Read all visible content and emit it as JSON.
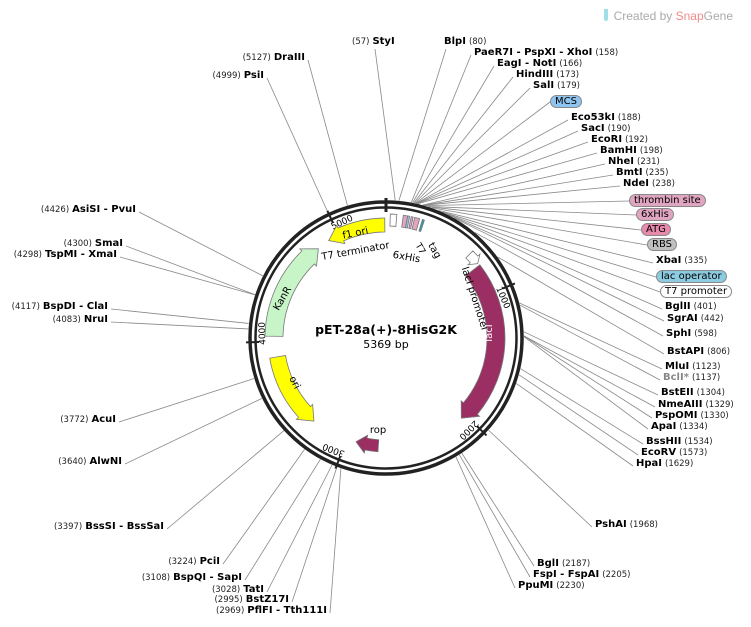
{
  "brand": {
    "prefix": "Created by",
    "name_a": "Snap",
    "name_b": "Gene",
    "icon": "tube-icon"
  },
  "plasmid": {
    "name": "pET-28a(+)-8HisG2K",
    "size_label": "5369 bp",
    "length": 5369
  },
  "ticks": [
    "1000",
    "2000",
    "3000",
    "4000",
    "5000"
  ],
  "features": [
    {
      "name": "lacI",
      "start": 776,
      "end": 2040,
      "dir": 1,
      "color": "#9b2f63",
      "text_color": "#fff"
    },
    {
      "name": "lacI promoter",
      "start": 670,
      "end": 760,
      "dir": 1,
      "color": "#ffffff",
      "text_color": "#000"
    },
    {
      "name": "rop",
      "start": 2745,
      "end": 2925,
      "dir": 1,
      "color": "#9b2f63",
      "text_color": "#000"
    },
    {
      "name": "ori",
      "start": 3295,
      "end": 3880,
      "dir": -1,
      "color": "#ffff00",
      "text_color": "#000"
    },
    {
      "name": "KanR",
      "start": 4040,
      "end": 4815,
      "dir": 1,
      "color": "#c8f5c8",
      "text_color": "#000"
    },
    {
      "name": "f1 ori",
      "start": 4915,
      "end": 5360,
      "dir": -1,
      "color": "#ffff00",
      "text_color": "#000"
    },
    {
      "name": "T7 terminator",
      "start": 30,
      "end": 75,
      "dir": 0,
      "color": "#ffffff",
      "text_color": "#000"
    },
    {
      "name": "6xHis",
      "start": 120,
      "end": 150,
      "dir": 0,
      "color": "#e0a5c0",
      "text_color": "#000"
    },
    {
      "name": "T7 tag",
      "start": 200,
      "end": 235,
      "dir": 0,
      "color": "#e0a5c0",
      "text_color": "#000"
    }
  ],
  "feature_labels": {
    "t7term": "T7 terminator",
    "his": "6xHis",
    "t7": "T7",
    "tag": "tag",
    "lacip": "lacI promoter",
    "laci": "lacI",
    "rop": "rop",
    "ori": "ori",
    "kanr": "KanR",
    "f1": "f1 ori"
  },
  "pills": [
    {
      "name": "MCS",
      "bp": 185,
      "color": "#8fc4f0"
    },
    {
      "name": "thrombin site",
      "bp": 245,
      "color": "#e0a5c0"
    },
    {
      "name": "6xHis",
      "bp": 262,
      "color": "#e0a5c0"
    },
    {
      "name": "ATG",
      "bp": 270,
      "color": "#e88aac"
    },
    {
      "name": "RBS",
      "bp": 290,
      "color": "#c0c0c0"
    },
    {
      "name": "lac operator",
      "bp": 360,
      "color": "#8ccbe0"
    },
    {
      "name": "T7 promoter",
      "bp": 385,
      "color": "#ffffff"
    }
  ],
  "sites_right": [
    {
      "name": "StyI",
      "pos": "57"
    },
    {
      "name": "BlpI",
      "pos": "80"
    },
    {
      "name": "PaeR7I - PspXI - XhoI",
      "pos": "158"
    },
    {
      "name": "EagI - NotI",
      "pos": "166"
    },
    {
      "name": "HindIII",
      "pos": "173"
    },
    {
      "name": "SalI",
      "pos": "179"
    },
    {
      "name": "Eco53kI",
      "pos": "188"
    },
    {
      "name": "SacI",
      "pos": "190"
    },
    {
      "name": "EcoRI",
      "pos": "192"
    },
    {
      "name": "BamHI",
      "pos": "198"
    },
    {
      "name": "NheI",
      "pos": "231"
    },
    {
      "name": "BmtI",
      "pos": "235"
    },
    {
      "name": "NdeI",
      "pos": "238"
    },
    {
      "name": "XbaI",
      "pos": "335"
    },
    {
      "name": "BglII",
      "pos": "401"
    },
    {
      "name": "SgrAI",
      "pos": "442"
    },
    {
      "name": "SphI",
      "pos": "598"
    },
    {
      "name": "BstAPI",
      "pos": "806"
    },
    {
      "name": "MluI",
      "pos": "1123"
    },
    {
      "name": "BclI*",
      "pos": "1137",
      "muted": true
    },
    {
      "name": "BstEII",
      "pos": "1304"
    },
    {
      "name": "NmeAIII",
      "pos": "1329"
    },
    {
      "name": "PspOMI",
      "pos": "1330"
    },
    {
      "name": "ApaI",
      "pos": "1334"
    },
    {
      "name": "BssHII",
      "pos": "1534"
    },
    {
      "name": "EcoRV",
      "pos": "1573"
    },
    {
      "name": "HpaI",
      "pos": "1629"
    },
    {
      "name": "PshAI",
      "pos": "1968"
    },
    {
      "name": "BglI",
      "pos": "2187"
    },
    {
      "name": "FspI - FspAI",
      "pos": "2205"
    },
    {
      "name": "PpuMI",
      "pos": "2230"
    }
  ],
  "sites_left": [
    {
      "name": "DraIII",
      "pos": "5127"
    },
    {
      "name": "PsiI",
      "pos": "4999"
    },
    {
      "name": "AsiSI - PvuI",
      "pos": "4426"
    },
    {
      "name": "SmaI",
      "pos": "4300"
    },
    {
      "name": "TspMI - XmaI",
      "pos": "4298"
    },
    {
      "name": "BspDI - ClaI",
      "pos": "4117"
    },
    {
      "name": "NruI",
      "pos": "4083"
    },
    {
      "name": "AcuI",
      "pos": "3772"
    },
    {
      "name": "AlwNI",
      "pos": "3640"
    },
    {
      "name": "BssSI - BssSaI",
      "pos": "3397"
    },
    {
      "name": "PciI",
      "pos": "3224"
    },
    {
      "name": "BspQI - SapI",
      "pos": "3108"
    },
    {
      "name": "TatI",
      "pos": "3028"
    },
    {
      "name": "BstZ17I",
      "pos": "2995"
    },
    {
      "name": "PflFI - Tth111I",
      "pos": "2969"
    }
  ]
}
